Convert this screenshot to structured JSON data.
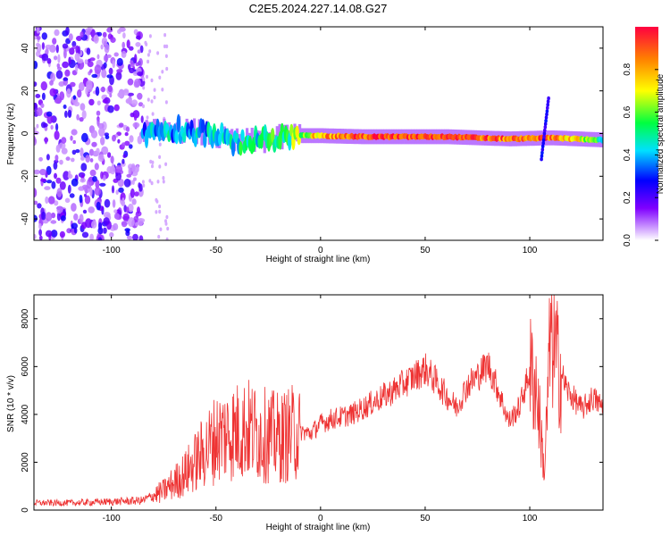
{
  "figure_title": "C2E5.2024.227.14.08.G27",
  "chart_data": [
    {
      "type": "heatmap",
      "title": "C2E5.2024.227.14.08.G27",
      "xlabel": "Height of straight line (km)",
      "ylabel": "Frequency (Hz)",
      "xlim": [
        -137,
        135
      ],
      "ylim": [
        -50,
        50
      ],
      "xticks": [
        -100,
        -50,
        0,
        50,
        100
      ],
      "yticks": [
        -40,
        -20,
        0,
        20,
        40
      ],
      "colorbar": {
        "label": "Normalized spectral amplitude",
        "range": [
          0,
          1
        ],
        "ticks": [
          "0.0",
          "0.2",
          "0.4",
          "0.6",
          "0.8"
        ],
        "colors": [
          "#ffffff",
          "#cc99ff",
          "#8000ff",
          "#0000ff",
          "#00e0ff",
          "#00ff40",
          "#ffff00",
          "#ff8000",
          "#ff0040"
        ]
      },
      "noise_region_km": [
        -137,
        -85
      ],
      "ridge": [
        {
          "x": -85,
          "f": 0,
          "amp": 0.35
        },
        {
          "x": -70,
          "f": 2,
          "amp": 0.4
        },
        {
          "x": -55,
          "f": 0,
          "amp": 0.4
        },
        {
          "x": -40,
          "f": -4,
          "amp": 0.45
        },
        {
          "x": -25,
          "f": -3,
          "amp": 0.5
        },
        {
          "x": -15,
          "f": -1,
          "amp": 0.55
        },
        {
          "x": 0,
          "f": -1,
          "amp": 0.8
        },
        {
          "x": 20,
          "f": -1.5,
          "amp": 0.9
        },
        {
          "x": 60,
          "f": -1.5,
          "amp": 0.95
        },
        {
          "x": 90,
          "f": -2.5,
          "amp": 0.85
        },
        {
          "x": 110,
          "f": -2,
          "amp": 0.9
        },
        {
          "x": 135,
          "f": -3,
          "amp": 0.5
        }
      ]
    },
    {
      "type": "line",
      "xlabel": "Height of straight line (km)",
      "ylabel": "SNR (10 * v/v)",
      "xlim": [
        -137,
        135
      ],
      "ylim": [
        0,
        9000
      ],
      "xticks": [
        -100,
        -50,
        0,
        50,
        100
      ],
      "yticks": [
        0,
        2000,
        4000,
        6000,
        8000
      ],
      "color": "#ee3333",
      "series": [
        {
          "x": [
            -137,
            -120,
            -100,
            -85,
            -75,
            -65,
            -55,
            -50,
            -45,
            -35,
            -30,
            -20,
            -10,
            -5,
            0,
            5,
            15,
            25,
            35,
            40,
            45,
            50,
            55,
            60,
            65,
            70,
            75,
            80,
            85,
            90,
            95,
            100,
            103,
            105,
            107,
            110,
            113,
            118,
            125,
            130,
            135
          ],
          "y": [
            300,
            300,
            350,
            400,
            800,
            1500,
            2500,
            3000,
            3200,
            3400,
            3200,
            3000,
            3300,
            3200,
            3600,
            3800,
            4000,
            4500,
            5000,
            5300,
            5600,
            5900,
            5400,
            4800,
            4300,
            5200,
            5600,
            6100,
            5000,
            3700,
            4300,
            5800,
            5200,
            3500,
            1500,
            7500,
            6200,
            5000,
            4200,
            4700,
            4300
          ]
        }
      ]
    }
  ]
}
